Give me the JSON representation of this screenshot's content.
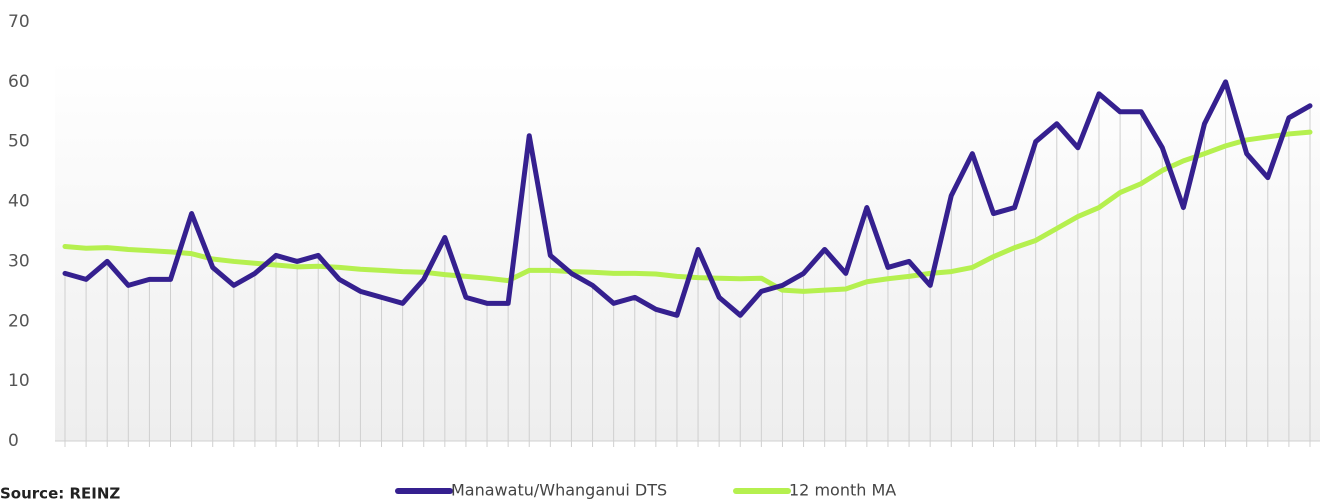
{
  "chart_data": {
    "type": "line",
    "categories": [
      null,
      null,
      null,
      null,
      null,
      null,
      null,
      null,
      null,
      null,
      null,
      null,
      null,
      null,
      null,
      null,
      null,
      null,
      null,
      null,
      null,
      null,
      null,
      null,
      null,
      null,
      null,
      null,
      null,
      null,
      null,
      null,
      null,
      null,
      null,
      null,
      null,
      null,
      null,
      null,
      null,
      null,
      null,
      null,
      null,
      null,
      null,
      null,
      null,
      null,
      null,
      null,
      null,
      null,
      null,
      null,
      null,
      null,
      null,
      null
    ],
    "series": [
      {
        "name": "Manawatu/Whanganui DTS",
        "color": "#35208f",
        "values": [
          28,
          27,
          30,
          26,
          27,
          27,
          38,
          29,
          26,
          28,
          31,
          30,
          31,
          27,
          25,
          24,
          23,
          27,
          34,
          24,
          23,
          23,
          51,
          31,
          28,
          26,
          23,
          24,
          22,
          21,
          32,
          24,
          21,
          25,
          26,
          28,
          32,
          28,
          39,
          29,
          30,
          26,
          41,
          48,
          38,
          39,
          50,
          53,
          49,
          58,
          55,
          55,
          49,
          39,
          53,
          60,
          48,
          44,
          54,
          56
        ]
      },
      {
        "name": "12 month MA",
        "color": "#b5f04f",
        "values": [
          32.5,
          32.2,
          32.3,
          32,
          31.8,
          31.6,
          31.3,
          30.4,
          30,
          29.7,
          29.4,
          29.1,
          29.2,
          29,
          28.7,
          28.5,
          28.3,
          28.2,
          27.8,
          27.5,
          27.2,
          26.8,
          28.5,
          28.5,
          28.3,
          28.2,
          28,
          28,
          27.9,
          27.5,
          27.3,
          27.2,
          27.1,
          27.2,
          25.2,
          25,
          25.2,
          25.4,
          26.6,
          27.1,
          27.5,
          28,
          28.3,
          29,
          30.8,
          32.3,
          33.5,
          35.5,
          37.5,
          39,
          41.5,
          43,
          45.2,
          46.8,
          48,
          49.3,
          50.3,
          50.8,
          51.3,
          51.6
        ]
      }
    ],
    "ylim": [
      0,
      70
    ],
    "yticks": [
      0,
      10,
      20,
      30,
      40,
      50,
      60,
      70
    ],
    "legend": "bottom",
    "drop_lines": true,
    "source": "Source: REINZ"
  }
}
